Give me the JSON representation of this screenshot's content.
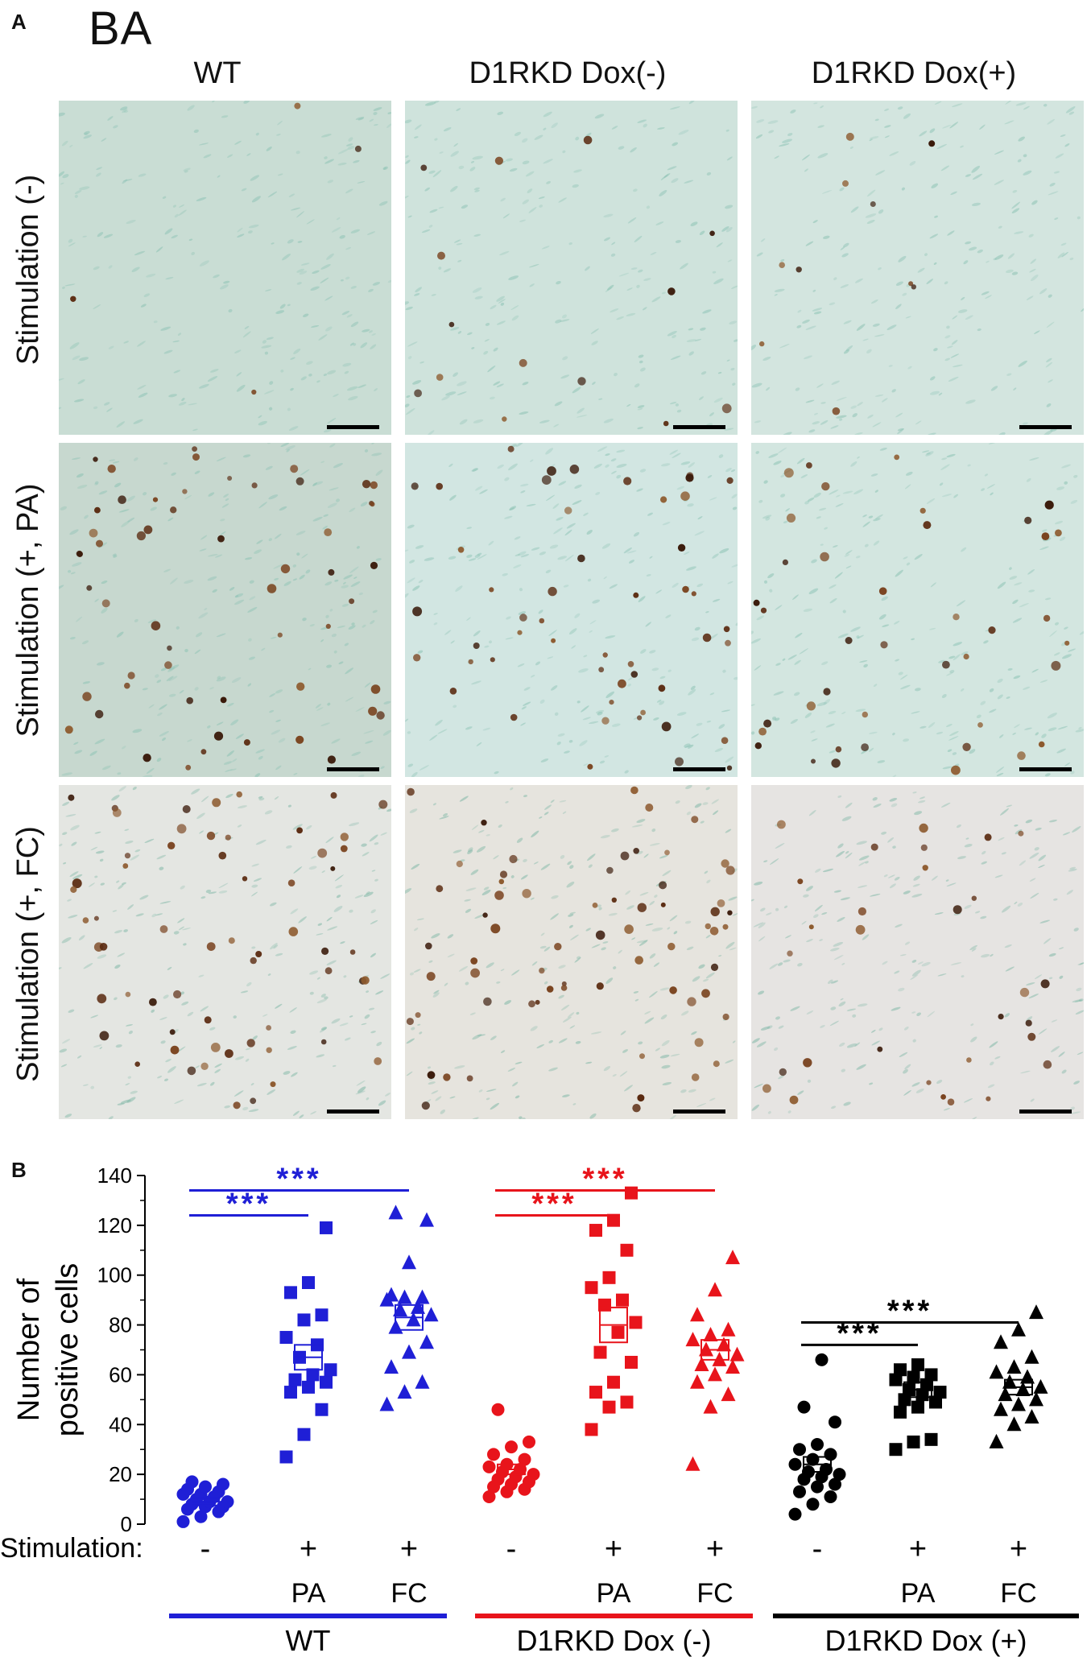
{
  "panel_a": {
    "letter": "A",
    "region": "BA",
    "columns": [
      "WT",
      "D1RKD Dox(-)",
      "D1RKD Dox(+)"
    ],
    "rows": [
      "Stimulation (-)",
      "Stimulation (+, PA)",
      "Stimulation (+, FC)"
    ]
  },
  "panel_b": {
    "letter": "B",
    "stimulation_label": "Stimulation:",
    "signs": [
      "-",
      "+",
      "+",
      "-",
      "+",
      "+",
      "-",
      "+",
      "+"
    ],
    "conditions": [
      "",
      "PA",
      "FC",
      "",
      "PA",
      "FC",
      "",
      "PA",
      "FC"
    ],
    "groups": [
      {
        "name": "WT",
        "color": "#1f1fd6"
      },
      {
        "name": "D1RKD Dox (-)",
        "color": "#e8141b"
      },
      {
        "name": "D1RKD Dox (+)",
        "color": "#000000"
      }
    ],
    "significance": "***"
  },
  "chart_data": {
    "type": "scatter",
    "ylabel": "Number of\npositive cells",
    "ylim": [
      0,
      140
    ],
    "yticks": [
      0,
      20,
      40,
      60,
      80,
      100,
      120,
      140
    ],
    "series": [
      {
        "group": "WT",
        "color": "#1f1fd6",
        "marker": "circle",
        "mean": 9,
        "sem": 1.5,
        "values": [
          1,
          3,
          5,
          6,
          7,
          7,
          8,
          9,
          9,
          10,
          11,
          12,
          12,
          13,
          14,
          15,
          16,
          17
        ]
      },
      {
        "group": "WT",
        "condition": "PA",
        "color": "#1f1fd6",
        "marker": "square",
        "mean": 67,
        "sem": 5,
        "values": [
          27,
          36,
          46,
          53,
          55,
          57,
          58,
          60,
          62,
          67,
          72,
          75,
          82,
          84,
          93,
          97,
          119
        ]
      },
      {
        "group": "WT",
        "condition": "FC",
        "color": "#1f1fd6",
        "marker": "triangle",
        "mean": 83,
        "sem": 5,
        "values": [
          48,
          53,
          57,
          63,
          69,
          73,
          79,
          82,
          84,
          86,
          87,
          90,
          91,
          91,
          92,
          105,
          122,
          125
        ]
      },
      {
        "group": "D1RKD Dox (-)",
        "color": "#e8141b",
        "marker": "circle",
        "mean": 22,
        "sem": 2,
        "values": [
          11,
          13,
          14,
          15,
          16,
          17,
          18,
          19,
          20,
          21,
          22,
          23,
          24,
          26,
          28,
          31,
          33,
          46
        ]
      },
      {
        "group": "D1RKD Dox (-)",
        "condition": "PA",
        "color": "#e8141b",
        "marker": "square",
        "mean": 80,
        "sem": 7,
        "values": [
          38,
          47,
          49,
          53,
          57,
          65,
          69,
          77,
          81,
          88,
          90,
          95,
          99,
          110,
          118,
          122,
          133
        ]
      },
      {
        "group": "D1RKD Dox (-)",
        "condition": "FC",
        "color": "#e8141b",
        "marker": "triangle",
        "mean": 70,
        "sem": 4,
        "values": [
          24,
          47,
          52,
          57,
          60,
          63,
          64,
          66,
          68,
          70,
          72,
          74,
          76,
          78,
          84,
          94,
          107
        ]
      },
      {
        "group": "D1RKD Dox (+)",
        "color": "#000000",
        "marker": "circle",
        "mean": 24,
        "sem": 3,
        "values": [
          4,
          8,
          11,
          13,
          15,
          16,
          18,
          19,
          20,
          21,
          22,
          24,
          26,
          28,
          30,
          32,
          41,
          47,
          66
        ]
      },
      {
        "group": "D1RKD Dox (+)",
        "condition": "PA",
        "color": "#000000",
        "marker": "square",
        "mean": 54,
        "sem": 3,
        "values": [
          30,
          33,
          34,
          45,
          47,
          49,
          50,
          52,
          53,
          54,
          56,
          58,
          59,
          60,
          62,
          64
        ]
      },
      {
        "group": "D1RKD Dox (+)",
        "condition": "FC",
        "color": "#000000",
        "marker": "triangle",
        "mean": 55,
        "sem": 3,
        "values": [
          33,
          40,
          43,
          46,
          48,
          50,
          52,
          54,
          55,
          57,
          59,
          61,
          63,
          67,
          73,
          78,
          85
        ]
      }
    ],
    "comparisons": [
      {
        "group": "WT",
        "from": 0,
        "to": 1,
        "y": 124,
        "label": "***"
      },
      {
        "group": "WT",
        "from": 0,
        "to": 2,
        "y": 134,
        "label": "***"
      },
      {
        "group": "D1RKD Dox (-)",
        "from": 3,
        "to": 4,
        "y": 124,
        "label": "***"
      },
      {
        "group": "D1RKD Dox (-)",
        "from": 3,
        "to": 5,
        "y": 134,
        "label": "***"
      },
      {
        "group": "D1RKD Dox (+)",
        "from": 6,
        "to": 7,
        "y": 72,
        "label": "***"
      },
      {
        "group": "D1RKD Dox (+)",
        "from": 6,
        "to": 8,
        "y": 81,
        "label": "***"
      }
    ]
  }
}
